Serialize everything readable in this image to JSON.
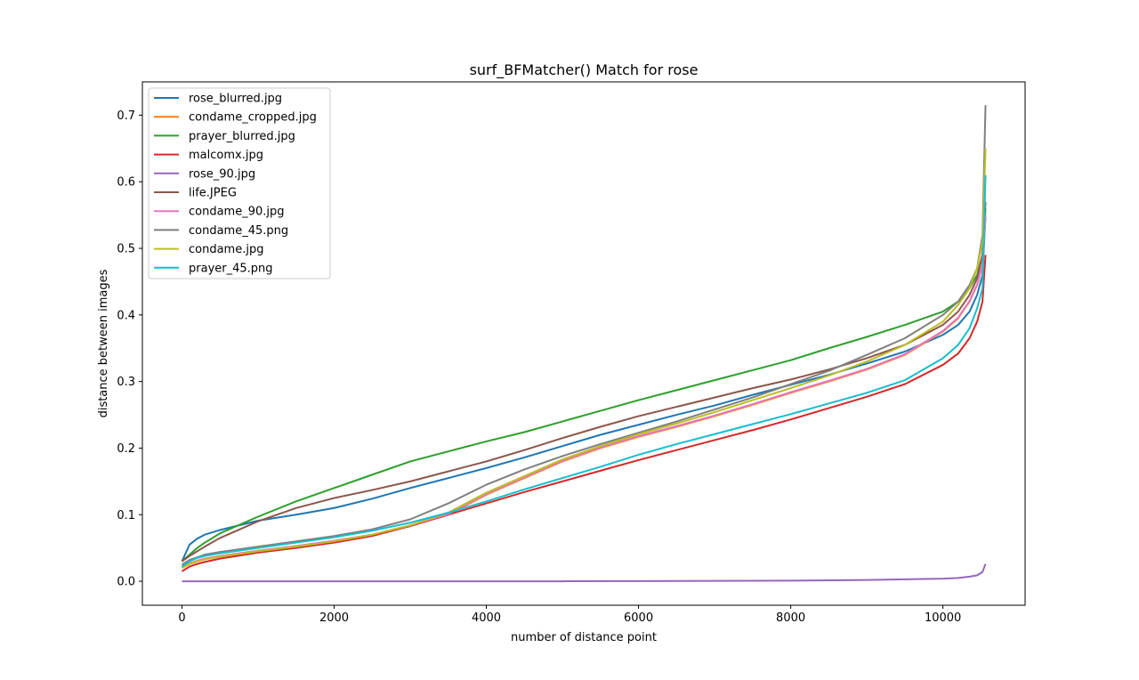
{
  "chart_data": {
    "type": "line",
    "title": "surf_BFMatcher() Match for rose",
    "xlabel": "number of distance point",
    "ylabel": "distance between images",
    "xlim": [
      -520,
      11080
    ],
    "ylim": [
      -0.036,
      0.75
    ],
    "xticks": [
      0,
      2000,
      4000,
      6000,
      8000,
      10000
    ],
    "xtick_labels": [
      "0",
      "2000",
      "4000",
      "6000",
      "8000",
      "10000"
    ],
    "yticks": [
      0.0,
      0.1,
      0.2,
      0.3,
      0.4,
      0.5,
      0.6,
      0.7
    ],
    "ytick_labels": [
      "0.0",
      "0.1",
      "0.2",
      "0.3",
      "0.4",
      "0.5",
      "0.6",
      "0.7"
    ],
    "grid": false,
    "legend_position": "top-left",
    "series": [
      {
        "name": "rose_blurred.jpg",
        "color": "#1f77b4",
        "x": [
          0,
          100,
          200,
          300,
          500,
          1000,
          1500,
          2000,
          2500,
          3000,
          3500,
          4000,
          4500,
          5000,
          5500,
          6000,
          6500,
          7000,
          7500,
          8000,
          8500,
          9000,
          9500,
          10000,
          10200,
          10350,
          10450,
          10520,
          10560
        ],
        "y": [
          0.03,
          0.055,
          0.064,
          0.07,
          0.077,
          0.091,
          0.1,
          0.11,
          0.124,
          0.14,
          0.155,
          0.17,
          0.186,
          0.203,
          0.22,
          0.235,
          0.25,
          0.264,
          0.28,
          0.295,
          0.31,
          0.327,
          0.345,
          0.37,
          0.385,
          0.405,
          0.43,
          0.46,
          0.55
        ]
      },
      {
        "name": "condame_cropped.jpg",
        "color": "#ff7f0e",
        "x": [
          0,
          100,
          200,
          300,
          500,
          1000,
          1500,
          2000,
          2500,
          3000,
          3500,
          4000,
          4500,
          5000,
          5500,
          6000,
          6500,
          7000,
          7500,
          8000,
          8500,
          9000,
          9500,
          10000,
          10200,
          10350,
          10450,
          10520,
          10560
        ],
        "y": [
          0.02,
          0.026,
          0.03,
          0.033,
          0.037,
          0.045,
          0.052,
          0.06,
          0.069,
          0.083,
          0.1,
          0.13,
          0.155,
          0.18,
          0.2,
          0.217,
          0.232,
          0.248,
          0.265,
          0.283,
          0.3,
          0.318,
          0.34,
          0.375,
          0.395,
          0.42,
          0.445,
          0.475,
          0.55
        ]
      },
      {
        "name": "prayer_blurred.jpg",
        "color": "#2ca02c",
        "x": [
          0,
          100,
          200,
          300,
          500,
          1000,
          1500,
          2000,
          2500,
          3000,
          3500,
          4000,
          4500,
          5000,
          5500,
          6000,
          6500,
          7000,
          7500,
          8000,
          8500,
          9000,
          9500,
          10000,
          10200,
          10350,
          10450,
          10520,
          10560
        ],
        "y": [
          0.03,
          0.04,
          0.05,
          0.058,
          0.072,
          0.097,
          0.12,
          0.14,
          0.16,
          0.18,
          0.195,
          0.21,
          0.224,
          0.24,
          0.256,
          0.272,
          0.287,
          0.302,
          0.317,
          0.332,
          0.35,
          0.367,
          0.385,
          0.405,
          0.42,
          0.44,
          0.46,
          0.49,
          0.56
        ]
      },
      {
        "name": "malcomx.jpg",
        "color": "#d62728",
        "x": [
          0,
          100,
          200,
          300,
          500,
          1000,
          1500,
          2000,
          2500,
          3000,
          3500,
          4000,
          4500,
          5000,
          5500,
          6000,
          6500,
          7000,
          7500,
          8000,
          8500,
          9000,
          9500,
          10000,
          10200,
          10350,
          10450,
          10520,
          10560
        ],
        "y": [
          0.015,
          0.022,
          0.026,
          0.029,
          0.034,
          0.043,
          0.05,
          0.058,
          0.068,
          0.083,
          0.1,
          0.117,
          0.134,
          0.15,
          0.166,
          0.182,
          0.197,
          0.212,
          0.227,
          0.243,
          0.26,
          0.277,
          0.296,
          0.325,
          0.342,
          0.365,
          0.39,
          0.42,
          0.49
        ]
      },
      {
        "name": "rose_90.jpg",
        "color": "#9467bd",
        "x": [
          0,
          1000,
          2000,
          3000,
          4000,
          5000,
          6000,
          7000,
          8000,
          9000,
          9500,
          10000,
          10200,
          10350,
          10450,
          10520,
          10560
        ],
        "y": [
          0.0,
          0.0,
          0.0,
          0.0,
          0.0,
          0.0,
          0.0003,
          0.0006,
          0.001,
          0.002,
          0.003,
          0.004,
          0.005,
          0.007,
          0.009,
          0.014,
          0.026
        ]
      },
      {
        "name": "life.JPEG",
        "color": "#8c564b",
        "x": [
          0,
          100,
          200,
          300,
          500,
          1000,
          1500,
          2000,
          2500,
          3000,
          3500,
          4000,
          4500,
          5000,
          5500,
          6000,
          6500,
          7000,
          7500,
          8000,
          8500,
          9000,
          9500,
          10000,
          10200,
          10350,
          10450,
          10520,
          10560
        ],
        "y": [
          0.03,
          0.038,
          0.045,
          0.052,
          0.065,
          0.09,
          0.11,
          0.125,
          0.137,
          0.15,
          0.165,
          0.18,
          0.197,
          0.215,
          0.232,
          0.248,
          0.262,
          0.276,
          0.29,
          0.303,
          0.318,
          0.335,
          0.355,
          0.385,
          0.405,
          0.43,
          0.455,
          0.49,
          0.57
        ]
      },
      {
        "name": "condame_90.jpg",
        "color": "#e377c2",
        "x": [
          0,
          100,
          200,
          300,
          500,
          1000,
          1500,
          2000,
          2500,
          3000,
          3500,
          4000,
          4500,
          5000,
          5500,
          6000,
          6500,
          7000,
          7500,
          8000,
          8500,
          9000,
          9500,
          10000,
          10200,
          10350,
          10450,
          10520,
          10560
        ],
        "y": [
          0.021,
          0.027,
          0.031,
          0.034,
          0.038,
          0.046,
          0.053,
          0.061,
          0.07,
          0.084,
          0.101,
          0.131,
          0.156,
          0.181,
          0.201,
          0.218,
          0.233,
          0.249,
          0.266,
          0.284,
          0.301,
          0.319,
          0.341,
          0.376,
          0.396,
          0.421,
          0.446,
          0.476,
          0.55
        ]
      },
      {
        "name": "condame_45.png",
        "color": "#7f7f7f",
        "x": [
          0,
          100,
          200,
          300,
          500,
          1000,
          1500,
          2000,
          2500,
          3000,
          3500,
          4000,
          4500,
          5000,
          5500,
          6000,
          6500,
          7000,
          7500,
          8000,
          8500,
          9000,
          9500,
          10000,
          10200,
          10350,
          10450,
          10520,
          10560
        ],
        "y": [
          0.025,
          0.032,
          0.036,
          0.04,
          0.044,
          0.052,
          0.06,
          0.068,
          0.078,
          0.093,
          0.117,
          0.145,
          0.168,
          0.188,
          0.206,
          0.223,
          0.24,
          0.258,
          0.276,
          0.296,
          0.316,
          0.34,
          0.365,
          0.4,
          0.42,
          0.445,
          0.47,
          0.52,
          0.715
        ]
      },
      {
        "name": "condame.jpg",
        "color": "#bcbd22",
        "x": [
          0,
          100,
          200,
          300,
          500,
          1000,
          1500,
          2000,
          2500,
          3000,
          3500,
          4000,
          4500,
          5000,
          5500,
          6000,
          6500,
          7000,
          7500,
          8000,
          8500,
          9000,
          9500,
          10000,
          10200,
          10350,
          10450,
          10520,
          10560
        ],
        "y": [
          0.02,
          0.026,
          0.03,
          0.033,
          0.037,
          0.045,
          0.052,
          0.06,
          0.07,
          0.084,
          0.103,
          0.133,
          0.158,
          0.183,
          0.203,
          0.221,
          0.237,
          0.254,
          0.272,
          0.29,
          0.309,
          0.33,
          0.355,
          0.39,
          0.415,
          0.44,
          0.47,
          0.51,
          0.65
        ]
      },
      {
        "name": "prayer_45.png",
        "color": "#17becf",
        "x": [
          0,
          100,
          200,
          300,
          500,
          1000,
          1500,
          2000,
          2500,
          3000,
          3500,
          4000,
          4500,
          5000,
          5500,
          6000,
          6500,
          7000,
          7500,
          8000,
          8500,
          9000,
          9500,
          10000,
          10200,
          10350,
          10450,
          10520,
          10560
        ],
        "y": [
          0.022,
          0.03,
          0.035,
          0.038,
          0.042,
          0.05,
          0.058,
          0.066,
          0.076,
          0.088,
          0.103,
          0.12,
          0.138,
          0.155,
          0.172,
          0.19,
          0.206,
          0.221,
          0.236,
          0.251,
          0.267,
          0.283,
          0.302,
          0.335,
          0.355,
          0.38,
          0.41,
          0.44,
          0.61
        ]
      }
    ]
  }
}
